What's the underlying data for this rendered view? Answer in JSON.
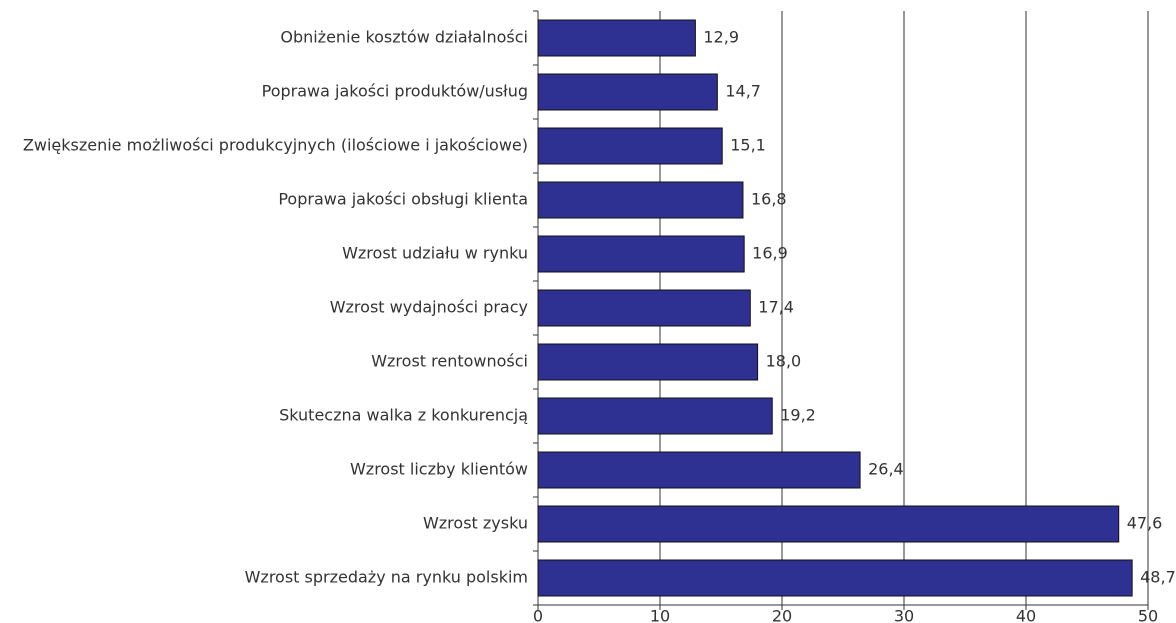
{
  "chart_data": {
    "type": "hbar",
    "categories": [
      "Obniżenie kosztów działalności",
      "Poprawa jakości produktów/usług",
      "Zwiększenie możliwości produkcyjnych (ilościowe i jakościowe)",
      "Poprawa jakości obsługi klienta",
      "Wzrost udziału w rynku",
      "Wzrost wydajności pracy",
      "Wzrost rentowności",
      "Skuteczna walka z konkurencją",
      "Wzrost liczby klientów",
      "Wzrost zysku",
      "Wzrost sprzedaży na rynku polskim"
    ],
    "values": [
      12.9,
      14.7,
      15.1,
      16.8,
      16.9,
      17.4,
      18.0,
      19.2,
      26.4,
      47.6,
      48.7
    ],
    "value_labels": [
      "12,9",
      "14,7",
      "15,1",
      "16,8",
      "16,9",
      "17,4",
      "18,0",
      "19,2",
      "26,4",
      "47,6",
      "48,7"
    ],
    "color": "#2e3192",
    "xlim": [
      0,
      50
    ],
    "xticks": [
      0,
      10,
      20,
      30,
      40,
      50
    ],
    "grid": true
  }
}
